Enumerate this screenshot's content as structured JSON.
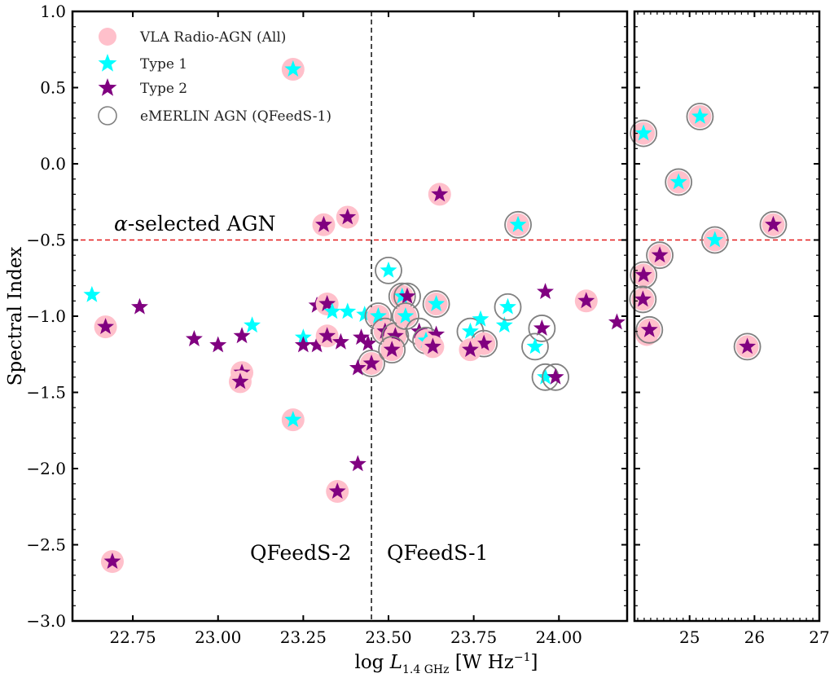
{
  "chart_data": {
    "type": "scatter",
    "ylabel": "Spectral Index",
    "xlabel_parts": {
      "prefix": "log ",
      "var": "L",
      "sub": "1.4 GHz",
      "unit_open": " [W Hz",
      "unit_sup": "−1",
      "unit_close": "]"
    },
    "panels": [
      {
        "name": "left",
        "xlim": [
          22.573,
          24.2
        ],
        "ylim": [
          -3.0,
          1.0
        ],
        "xticks": [
          22.75,
          23.0,
          23.25,
          23.5,
          23.75,
          24.0
        ],
        "xtick_labels": [
          "22.75",
          "23.00",
          "23.25",
          "23.50",
          "23.75",
          "24.00"
        ],
        "yticks": [
          1.0,
          0.5,
          0.0,
          -0.5,
          -1.0,
          -1.5,
          -2.0,
          -2.5,
          -3.0
        ],
        "ytick_labels": [
          "1.0",
          "0.5",
          "0.0",
          "−0.5",
          "−1.0",
          "−1.5",
          "−2.0",
          "−2.5",
          "−3.0"
        ]
      },
      {
        "name": "right",
        "xlim": [
          24.15,
          27.0
        ],
        "ylim": [
          -3.0,
          1.0
        ],
        "xticks": [
          25,
          26,
          27
        ],
        "xtick_labels": [
          "25",
          "26",
          "27"
        ]
      }
    ],
    "hline": {
      "y": -0.5,
      "color": "#e41a1c",
      "style": "dashed",
      "label": "α-selected AGN"
    },
    "vline": {
      "x": 23.45,
      "color": "#000000",
      "style": "dashed"
    },
    "region_labels": [
      "QFeedS-2",
      "QFeedS-1"
    ],
    "legend": {
      "placement": "top-left",
      "entries": [
        {
          "label": "VLA Radio-AGN (All)",
          "marker": "circle-filled",
          "color": "#ffc0cb"
        },
        {
          "label": "Type 1",
          "marker": "star",
          "color": "#00ffff"
        },
        {
          "label": "Type 2",
          "marker": "star",
          "color": "#800080"
        },
        {
          "label": "eMERLIN AGN (QFeedS-1)",
          "marker": "circle-open",
          "color": "#808080"
        }
      ]
    },
    "series_note": "each point: [x, y, type (1=Type 1, 2=Type 2, 0=none), vla (1 if pink VLA circle), emerlin (1 if eMERLIN ring)]",
    "points": [
      [
        22.63,
        -0.86,
        1,
        0,
        0
      ],
      [
        22.67,
        -1.07,
        2,
        1,
        0
      ],
      [
        22.77,
        -0.94,
        2,
        0,
        0
      ],
      [
        22.93,
        -1.15,
        2,
        0,
        0
      ],
      [
        23.0,
        -1.19,
        2,
        0,
        0
      ],
      [
        23.07,
        -1.13,
        2,
        0,
        0
      ],
      [
        23.1,
        -1.06,
        1,
        0,
        0
      ],
      [
        23.07,
        -1.37,
        2,
        1,
        0
      ],
      [
        23.065,
        -1.43,
        2,
        1,
        0
      ],
      [
        23.22,
        0.62,
        1,
        1,
        0
      ],
      [
        23.31,
        -0.4,
        2,
        1,
        0
      ],
      [
        23.38,
        -0.35,
        2,
        1,
        0
      ],
      [
        23.65,
        -0.2,
        2,
        1,
        0
      ],
      [
        23.88,
        -0.4,
        1,
        1,
        1
      ],
      [
        23.29,
        -0.93,
        2,
        0,
        0
      ],
      [
        23.32,
        -0.92,
        2,
        1,
        0
      ],
      [
        23.335,
        -0.97,
        1,
        0,
        0
      ],
      [
        23.38,
        -0.97,
        1,
        0,
        0
      ],
      [
        23.43,
        -0.99,
        1,
        0,
        0
      ],
      [
        23.47,
        -1.0,
        1,
        1,
        1
      ],
      [
        23.25,
        -1.14,
        1,
        0,
        0
      ],
      [
        23.25,
        -1.19,
        2,
        0,
        0
      ],
      [
        23.29,
        -1.19,
        2,
        0,
        0
      ],
      [
        23.32,
        -1.13,
        2,
        1,
        0
      ],
      [
        23.36,
        -1.17,
        2,
        0,
        0
      ],
      [
        23.42,
        -1.14,
        2,
        0,
        0
      ],
      [
        23.44,
        -1.18,
        2,
        0,
        0
      ],
      [
        23.45,
        -1.31,
        2,
        1,
        1
      ],
      [
        23.41,
        -1.34,
        2,
        0,
        0
      ],
      [
        23.49,
        -1.1,
        2,
        1,
        1
      ],
      [
        23.52,
        -1.13,
        2,
        1,
        1
      ],
      [
        23.51,
        -1.22,
        2,
        1,
        1
      ],
      [
        23.5,
        -0.7,
        1,
        0,
        1
      ],
      [
        23.54,
        -0.87,
        1,
        1,
        1
      ],
      [
        23.555,
        -0.87,
        2,
        0,
        1
      ],
      [
        23.64,
        -0.92,
        1,
        1,
        1
      ],
      [
        23.55,
        -1.0,
        1,
        1,
        1
      ],
      [
        23.59,
        -1.1,
        2,
        0,
        1
      ],
      [
        23.61,
        -1.16,
        1,
        1,
        1
      ],
      [
        23.64,
        -1.12,
        2,
        0,
        0
      ],
      [
        23.63,
        -1.2,
        2,
        1,
        0
      ],
      [
        23.74,
        -1.1,
        1,
        0,
        1
      ],
      [
        23.77,
        -1.02,
        1,
        0,
        0
      ],
      [
        23.84,
        -1.06,
        1,
        0,
        0
      ],
      [
        23.85,
        -0.94,
        1,
        0,
        1
      ],
      [
        23.78,
        -1.18,
        2,
        1,
        1
      ],
      [
        23.74,
        -1.22,
        2,
        1,
        0
      ],
      [
        23.96,
        -0.84,
        2,
        0,
        0
      ],
      [
        24.08,
        -0.9,
        2,
        1,
        0
      ],
      [
        24.17,
        -1.04,
        2,
        0,
        0
      ],
      [
        23.95,
        -1.08,
        2,
        0,
        1
      ],
      [
        23.93,
        -1.2,
        1,
        0,
        1
      ],
      [
        23.96,
        -1.4,
        1,
        0,
        1
      ],
      [
        23.99,
        -1.4,
        2,
        0,
        1
      ],
      [
        23.22,
        -1.68,
        1,
        1,
        0
      ],
      [
        23.41,
        -1.97,
        2,
        0,
        0
      ],
      [
        23.35,
        -2.15,
        2,
        1,
        0
      ],
      [
        22.69,
        -2.61,
        2,
        1,
        0
      ],
      [
        24.29,
        0.2,
        1,
        1,
        1
      ],
      [
        25.16,
        0.31,
        1,
        1,
        1
      ],
      [
        24.83,
        -0.12,
        1,
        1,
        1
      ],
      [
        26.29,
        -0.4,
        2,
        1,
        1
      ],
      [
        25.39,
        -0.5,
        1,
        1,
        1
      ],
      [
        24.54,
        -0.6,
        2,
        1,
        1
      ],
      [
        24.29,
        -0.73,
        2,
        1,
        1
      ],
      [
        24.28,
        -0.89,
        2,
        1,
        1
      ],
      [
        24.34,
        -1.12,
        0,
        1,
        0
      ],
      [
        24.38,
        -1.09,
        2,
        1,
        1
      ],
      [
        25.89,
        -1.2,
        2,
        1,
        1
      ]
    ]
  }
}
